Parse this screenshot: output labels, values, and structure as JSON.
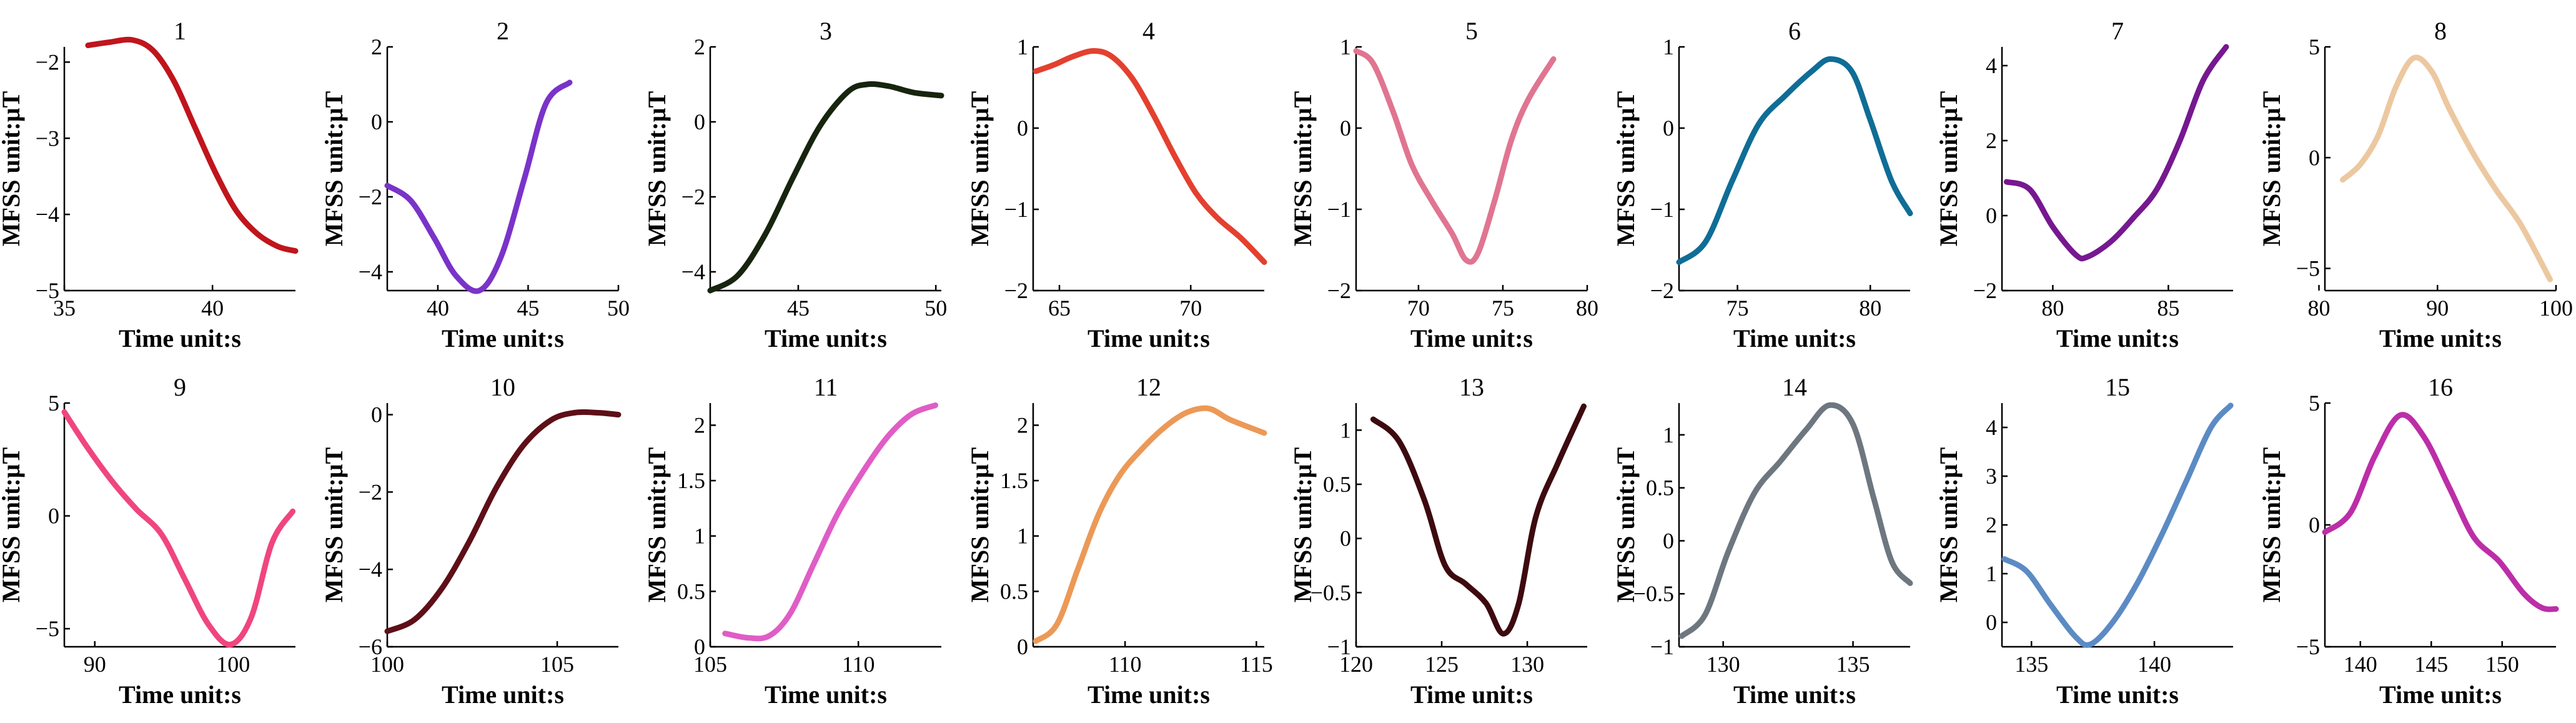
{
  "chart_data": [
    {
      "type": "line",
      "title": "1",
      "xlabel": "Time unit:s",
      "ylabel": "MFSS unit:μT",
      "xlim": [
        35,
        42.8
      ],
      "ylim": [
        -5,
        -1.8
      ],
      "xticks": [
        35,
        40
      ],
      "yticks": [
        -5,
        -4,
        -3,
        -2
      ],
      "color": "#c0151c",
      "x": [
        35.8,
        36.5,
        37.3,
        38.0,
        38.7,
        39.4,
        40.1,
        40.8,
        41.5,
        42.2,
        42.8
      ],
      "y": [
        -1.78,
        -1.74,
        -1.71,
        -1.85,
        -2.25,
        -2.85,
        -3.45,
        -3.95,
        -4.25,
        -4.42,
        -4.48
      ]
    },
    {
      "type": "line",
      "title": "2",
      "xlabel": "Time unit:s",
      "ylabel": "MFSS unit:μT",
      "xlim": [
        37.2,
        50
      ],
      "ylim": [
        -4.5,
        2
      ],
      "xticks": [
        40,
        45,
        50
      ],
      "yticks": [
        -4,
        -2,
        0,
        2
      ],
      "color": "#7a33c9",
      "x": [
        37.2,
        38.5,
        39.8,
        41.0,
        42.3,
        43.5,
        44.8,
        46.0,
        47.3
      ],
      "y": [
        -1.7,
        -2.1,
        -3.1,
        -4.1,
        -4.5,
        -3.6,
        -1.5,
        0.5,
        1.05
      ]
    },
    {
      "type": "line",
      "title": "3",
      "xlabel": "Time unit:s",
      "ylabel": "MFSS unit:μT",
      "xlim": [
        41.8,
        50.2
      ],
      "ylim": [
        -4.5,
        2
      ],
      "xticks": [
        45,
        50
      ],
      "yticks": [
        -4,
        -2,
        0,
        2
      ],
      "color": "#17240e",
      "x": [
        41.8,
        42.8,
        43.8,
        44.8,
        45.8,
        46.8,
        47.5,
        48.3,
        49.2,
        50.2
      ],
      "y": [
        -4.5,
        -4.1,
        -3.0,
        -1.5,
        -0.1,
        0.8,
        1.0,
        0.95,
        0.78,
        0.7
      ]
    },
    {
      "type": "line",
      "title": "4",
      "xlabel": "Time unit:s",
      "ylabel": "MFSS unit:μT",
      "xlim": [
        64,
        72.8
      ],
      "ylim": [
        -2,
        1
      ],
      "xticks": [
        65,
        70
      ],
      "yticks": [
        -2,
        -1,
        0,
        1
      ],
      "color": "#e4402f",
      "x": [
        64.1,
        64.8,
        65.5,
        66.3,
        67.0,
        67.8,
        68.6,
        69.4,
        70.2,
        71.0,
        71.9,
        72.8
      ],
      "y": [
        0.7,
        0.78,
        0.88,
        0.95,
        0.88,
        0.6,
        0.15,
        -0.35,
        -0.8,
        -1.1,
        -1.35,
        -1.65
      ]
    },
    {
      "type": "line",
      "title": "5",
      "xlabel": "Time unit:s",
      "ylabel": "MFSS unit:μT",
      "xlim": [
        66.3,
        80
      ],
      "ylim": [
        -2,
        1
      ],
      "xticks": [
        70,
        75,
        80
      ],
      "yticks": [
        -2,
        -1,
        0,
        1
      ],
      "color": "#e07591",
      "x": [
        66.3,
        67.3,
        68.5,
        69.6,
        70.8,
        72.0,
        72.8,
        73.5,
        74.5,
        75.5,
        76.5,
        78.0
      ],
      "y": [
        0.95,
        0.8,
        0.2,
        -0.45,
        -0.9,
        -1.3,
        -1.62,
        -1.55,
        -0.9,
        -0.15,
        0.35,
        0.85
      ]
    },
    {
      "type": "line",
      "title": "6",
      "xlabel": "Time unit:s",
      "ylabel": "MFSS unit:μT",
      "xlim": [
        72.8,
        81.5
      ],
      "ylim": [
        -2,
        1
      ],
      "xticks": [
        75,
        80
      ],
      "yticks": [
        -2,
        -1,
        0,
        1
      ],
      "color": "#0f6d96",
      "x": [
        72.8,
        73.8,
        74.8,
        75.8,
        76.8,
        77.8,
        78.5,
        79.3,
        80.0,
        80.8,
        81.5
      ],
      "y": [
        -1.65,
        -1.4,
        -0.65,
        0.05,
        0.4,
        0.7,
        0.85,
        0.7,
        0.1,
        -0.65,
        -1.05
      ]
    },
    {
      "type": "line",
      "title": "7",
      "xlabel": "Time unit:s",
      "ylabel": "MFSS unit:μT",
      "xlim": [
        77.8,
        87.8
      ],
      "ylim": [
        -2,
        4.5
      ],
      "xticks": [
        80,
        85
      ],
      "yticks": [
        -2,
        0,
        2,
        4
      ],
      "color": "#761890",
      "x": [
        78.0,
        79.0,
        80.0,
        81.0,
        81.5,
        82.5,
        83.5,
        84.5,
        85.5,
        86.5,
        87.5
      ],
      "y": [
        0.9,
        0.7,
        -0.3,
        -1.05,
        -1.1,
        -0.7,
        -0.05,
        0.7,
        2.0,
        3.6,
        4.5
      ]
    },
    {
      "type": "line",
      "title": "8",
      "xlabel": "Time unit:s",
      "ylabel": "MFSS unit:μT",
      "xlim": [
        80.5,
        100
      ],
      "ylim": [
        -6,
        5
      ],
      "xticks": [
        80,
        90,
        100
      ],
      "yticks": [
        -5,
        0,
        5
      ],
      "color": "#ecc8a0",
      "x": [
        82.0,
        83.5,
        85.0,
        86.5,
        88.0,
        89.5,
        91.0,
        93.0,
        95.0,
        97.0,
        99.5
      ],
      "y": [
        -1.0,
        -0.3,
        1.0,
        3.2,
        4.5,
        3.9,
        2.2,
        0.2,
        -1.5,
        -3.0,
        -5.5
      ]
    },
    {
      "type": "line",
      "title": "9",
      "xlabel": "Time unit:s",
      "ylabel": "MFSS unit:μT",
      "xlim": [
        87.8,
        104.5
      ],
      "ylim": [
        -5.8,
        5
      ],
      "xticks": [
        90,
        100
      ],
      "yticks": [
        -5,
        0,
        5
      ],
      "color": "#f0457e",
      "x": [
        87.8,
        89.5,
        91.3,
        93.0,
        94.8,
        96.5,
        98.2,
        99.8,
        101.3,
        102.8,
        104.3
      ],
      "y": [
        4.6,
        3.0,
        1.5,
        0.3,
        -0.8,
        -2.8,
        -4.8,
        -5.7,
        -4.5,
        -1.2,
        0.2
      ]
    },
    {
      "type": "line",
      "title": "10",
      "xlabel": "Time unit:s",
      "ylabel": "MFSS unit:μT",
      "xlim": [
        100,
        106.8
      ],
      "ylim": [
        -6,
        0.3
      ],
      "xticks": [
        100,
        105
      ],
      "yticks": [
        -6,
        -4,
        -2,
        0
      ],
      "color": "#5e0f18",
      "x": [
        100.0,
        100.8,
        101.6,
        102.4,
        103.2,
        104.0,
        104.8,
        105.5,
        106.2,
        106.8
      ],
      "y": [
        -5.6,
        -5.3,
        -4.5,
        -3.3,
        -1.9,
        -0.8,
        -0.15,
        0.05,
        0.05,
        0.0
      ]
    },
    {
      "type": "line",
      "title": "11",
      "xlabel": "Time unit:s",
      "ylabel": "MFSS unit:μT",
      "xlim": [
        105,
        112.8
      ],
      "ylim": [
        0,
        2.2
      ],
      "xticks": [
        105,
        110
      ],
      "yticks": [
        0,
        0.5,
        1,
        1.5,
        2
      ],
      "color": "#e05dc5",
      "x": [
        105.5,
        106.3,
        107.0,
        107.7,
        108.5,
        109.3,
        110.2,
        111.0,
        111.8,
        112.6
      ],
      "y": [
        0.12,
        0.08,
        0.1,
        0.3,
        0.75,
        1.2,
        1.6,
        1.9,
        2.1,
        2.18
      ]
    },
    {
      "type": "line",
      "title": "12",
      "xlabel": "Time unit:s",
      "ylabel": "MFSS unit:μT",
      "xlim": [
        106.5,
        115.3
      ],
      "ylim": [
        0,
        2.2
      ],
      "xticks": [
        110,
        115
      ],
      "yticks": [
        0,
        0.5,
        1,
        1.5,
        2
      ],
      "color": "#ec9957",
      "x": [
        106.6,
        107.4,
        108.2,
        109.0,
        109.8,
        110.7,
        111.6,
        112.4,
        113.2,
        114.0,
        115.3
      ],
      "y": [
        0.05,
        0.2,
        0.7,
        1.2,
        1.55,
        1.8,
        2.0,
        2.12,
        2.15,
        2.05,
        1.93
      ]
    },
    {
      "type": "line",
      "title": "13",
      "xlabel": "Time unit:s",
      "ylabel": "MFSS unit:μT",
      "xlim": [
        120,
        133.5
      ],
      "ylim": [
        -1,
        1.25
      ],
      "xticks": [
        120,
        125,
        130
      ],
      "yticks": [
        -1,
        -0.5,
        0,
        0.5,
        1
      ],
      "color": "#3d0a0f",
      "x": [
        121.0,
        122.5,
        124.0,
        125.2,
        126.4,
        127.6,
        128.6,
        129.5,
        130.5,
        131.8,
        133.3
      ],
      "y": [
        1.1,
        0.9,
        0.35,
        -0.25,
        -0.42,
        -0.6,
        -0.88,
        -0.6,
        0.2,
        0.7,
        1.22
      ]
    },
    {
      "type": "line",
      "title": "14",
      "xlabel": "Time unit:s",
      "ylabel": "MFSS unit:μT",
      "xlim": [
        128.3,
        137.2
      ],
      "ylim": [
        -1,
        1.3
      ],
      "xticks": [
        130,
        135
      ],
      "yticks": [
        -1,
        -0.5,
        0,
        0.5,
        1
      ],
      "color": "#6e7780",
      "x": [
        128.4,
        129.3,
        130.2,
        131.2,
        132.2,
        133.2,
        134.1,
        135.0,
        135.8,
        136.5,
        137.2
      ],
      "y": [
        -0.9,
        -0.7,
        -0.1,
        0.45,
        0.75,
        1.05,
        1.28,
        1.1,
        0.4,
        -0.2,
        -0.4
      ]
    },
    {
      "type": "line",
      "title": "15",
      "xlabel": "Time unit:s",
      "ylabel": "MFSS unit:μT",
      "xlim": [
        133.8,
        143.2
      ],
      "ylim": [
        -0.5,
        4.5
      ],
      "xticks": [
        135,
        140
      ],
      "yticks": [
        0,
        1,
        2,
        3,
        4
      ],
      "color": "#5c8bc4",
      "x": [
        133.9,
        134.8,
        135.8,
        136.8,
        137.4,
        138.3,
        139.3,
        140.3,
        141.3,
        142.3,
        143.1
      ],
      "y": [
        1.3,
        1.05,
        0.35,
        -0.3,
        -0.45,
        0.0,
        0.8,
        1.8,
        2.9,
        4.0,
        4.45
      ]
    },
    {
      "type": "line",
      "title": "16",
      "xlabel": "Time unit:s",
      "ylabel": "MFSS unit:μT",
      "xlim": [
        137.5,
        153.8
      ],
      "ylim": [
        -5,
        5
      ],
      "xticks": [
        140,
        145,
        150
      ],
      "yticks": [
        -5,
        0,
        5
      ],
      "color": "#bc2ea8",
      "x": [
        137.5,
        139.3,
        141.0,
        142.8,
        144.5,
        146.3,
        148.0,
        149.8,
        151.5,
        152.8,
        153.8
      ],
      "y": [
        -0.3,
        0.5,
        2.8,
        4.5,
        3.6,
        1.5,
        -0.5,
        -1.5,
        -2.8,
        -3.4,
        -3.45
      ]
    }
  ]
}
